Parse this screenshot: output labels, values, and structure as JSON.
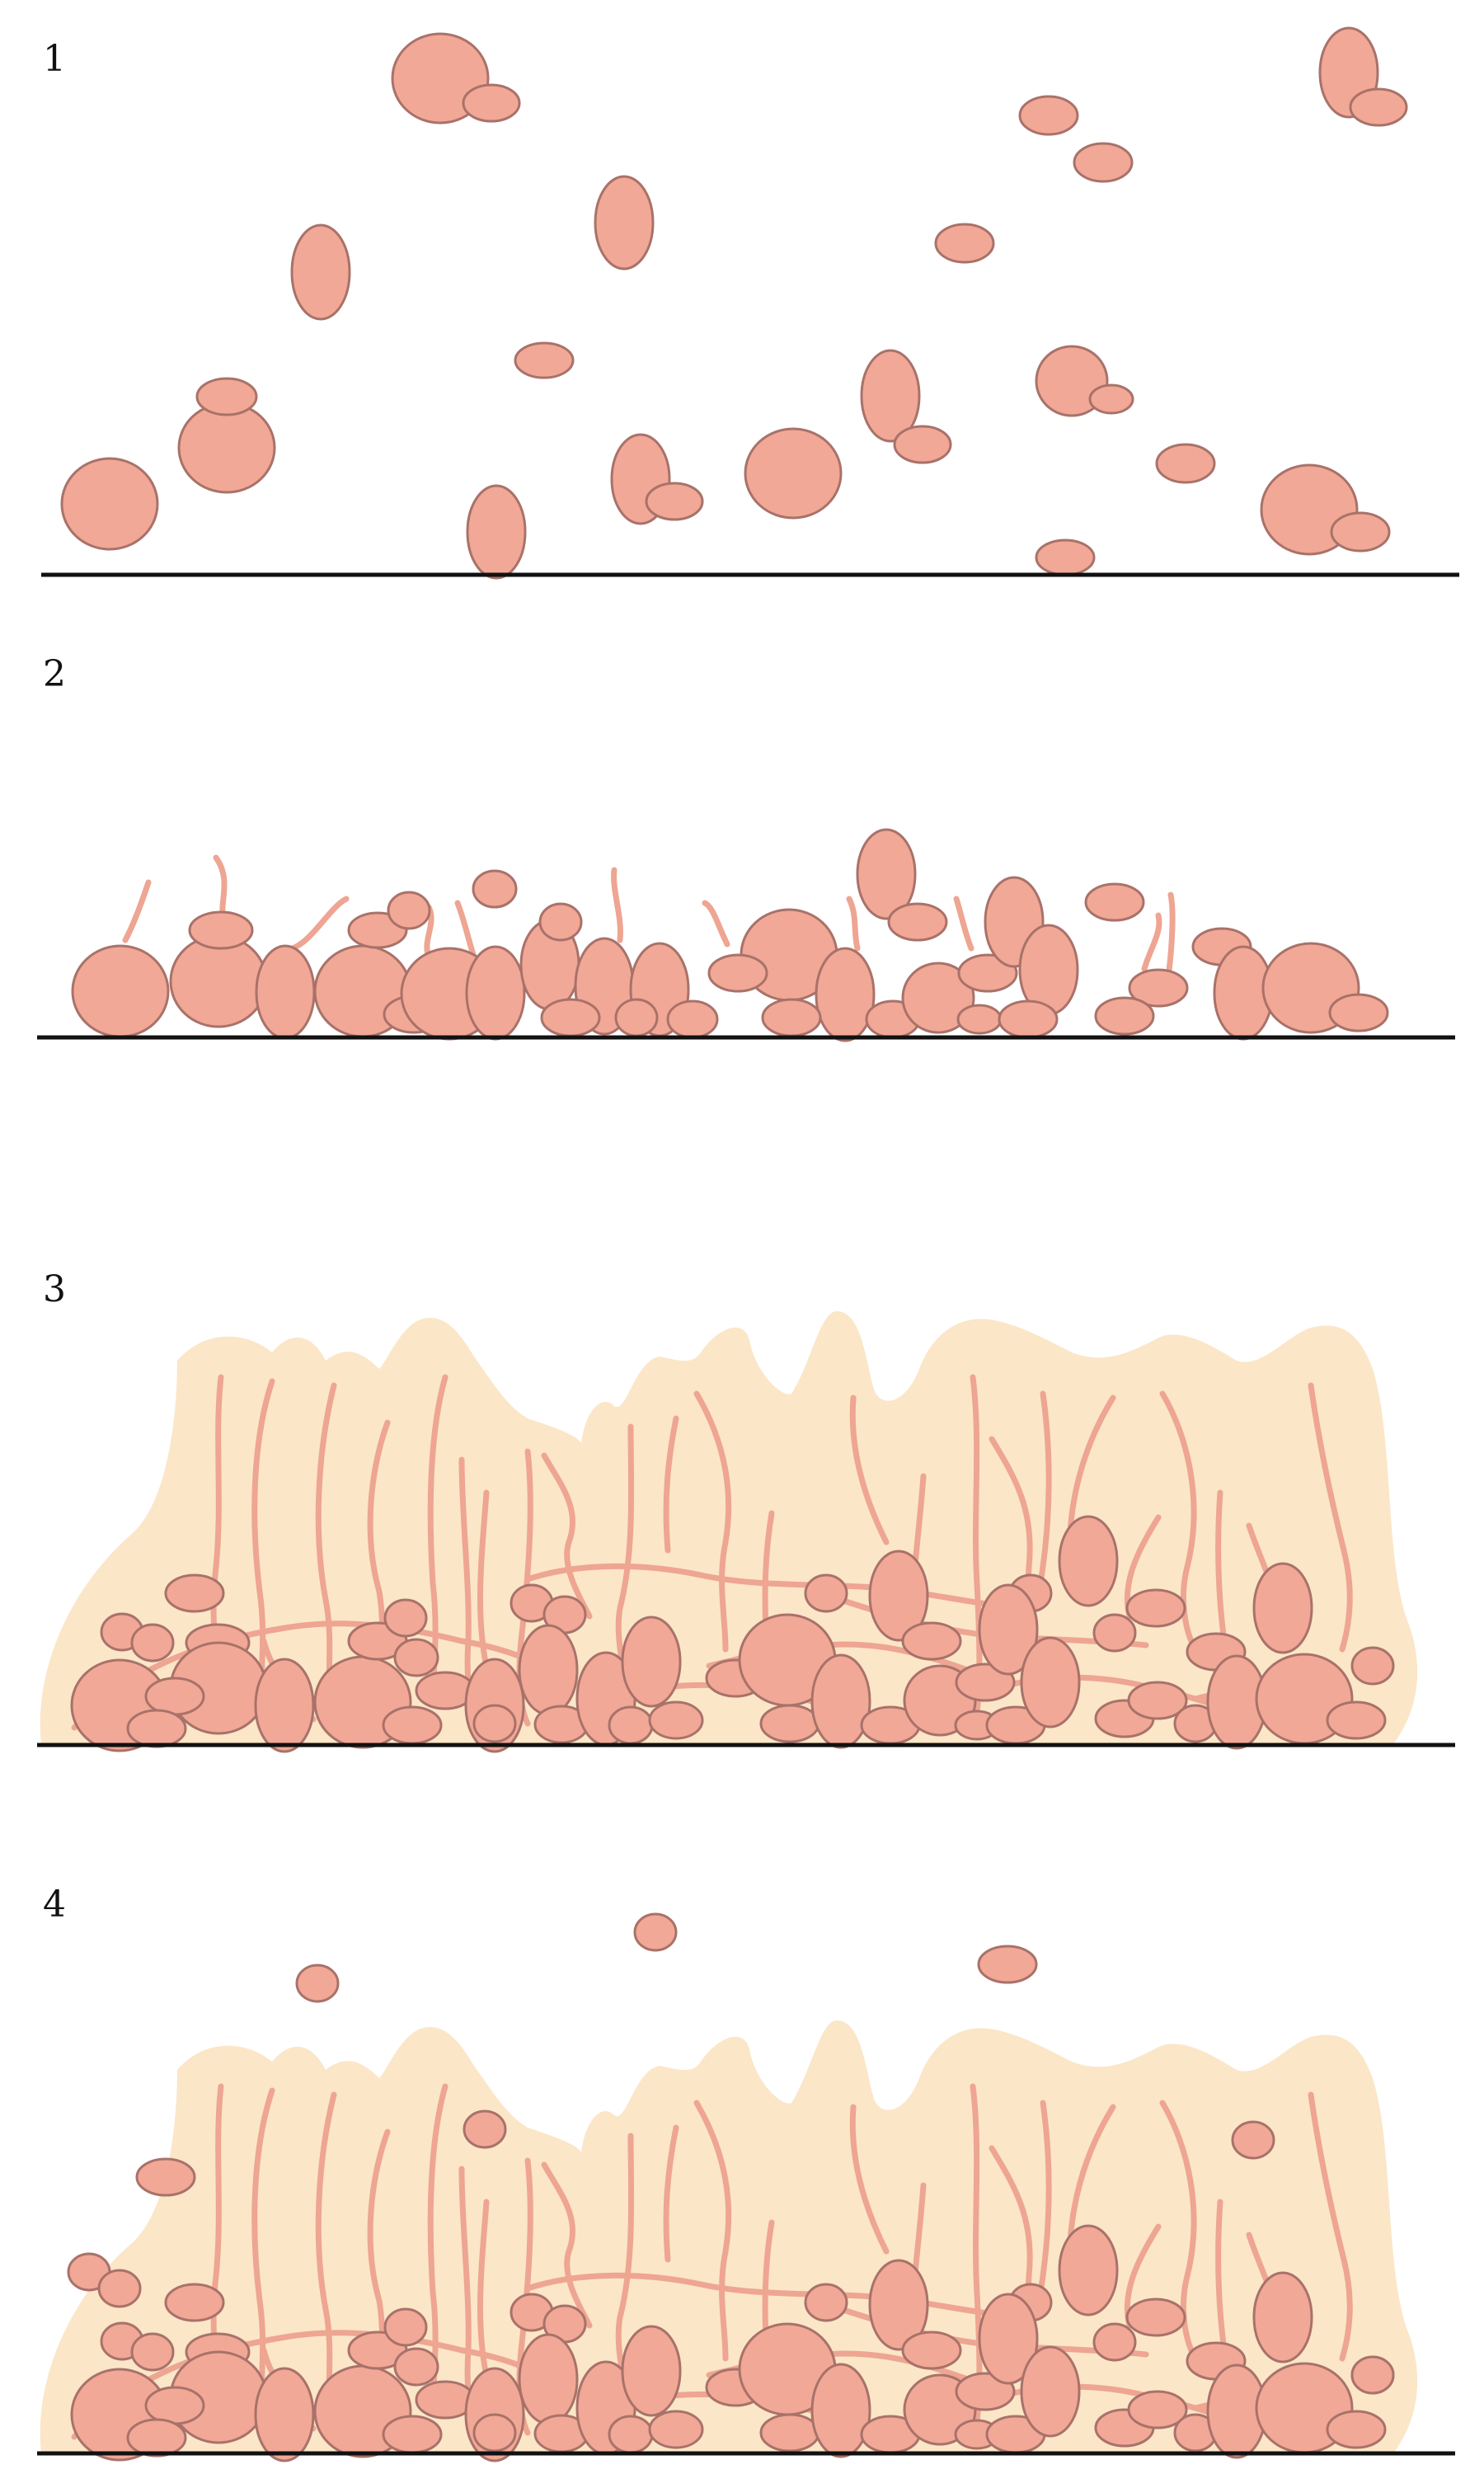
{
  "panels": [
    {
      "label": "1"
    },
    {
      "label": "2"
    },
    {
      "label": "3"
    },
    {
      "label": "4"
    }
  ],
  "colors": {
    "cell_fill": "#f2a896",
    "cell_outline": "#a8726a",
    "hypha": "#eea592",
    "matrix": "#fbe6c8",
    "surface_line": "#111111"
  }
}
